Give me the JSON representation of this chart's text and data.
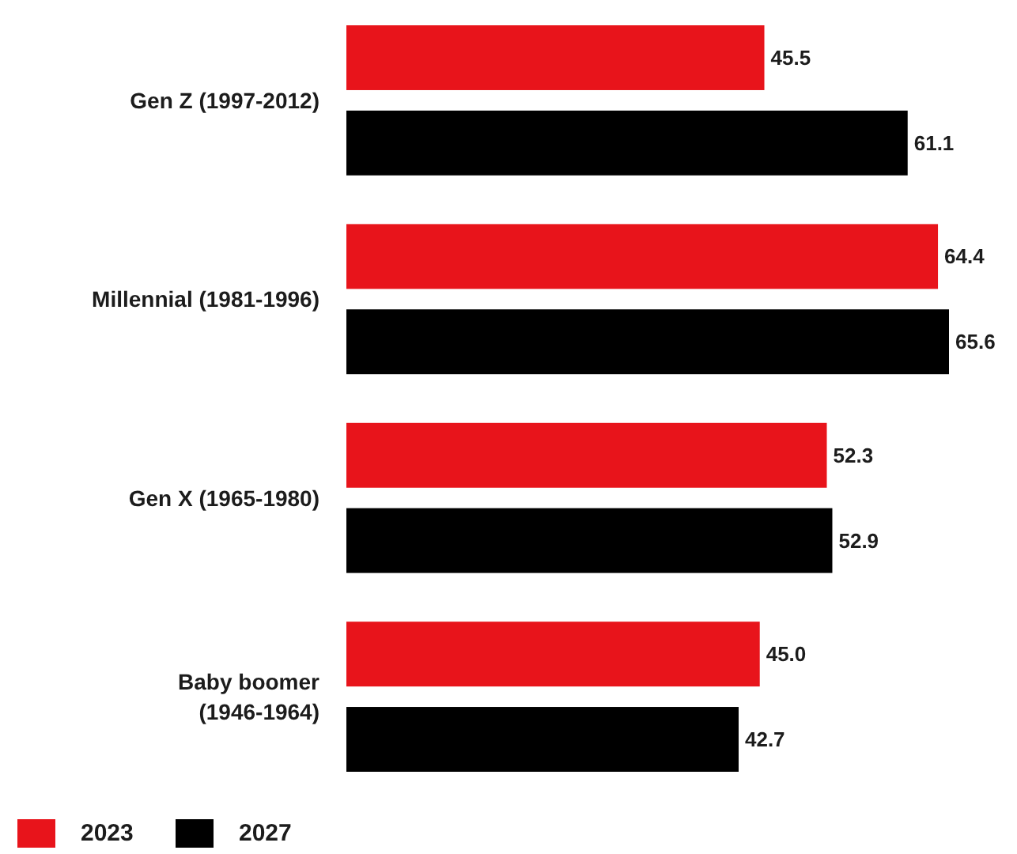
{
  "chart_data": {
    "type": "bar",
    "orientation": "horizontal",
    "categories": [
      "Gen Z (1997-2012)",
      "Millennial (1981-1996)",
      "Gen X (1965-1980)",
      "Baby boomer\n(1946-1964)"
    ],
    "series": [
      {
        "name": "2023",
        "color": "#e8141b",
        "values": [
          45.5,
          64.4,
          52.3,
          45.0
        ],
        "value_labels": [
          "45.5",
          "64.4",
          "52.3",
          "45.0"
        ]
      },
      {
        "name": "2027",
        "color": "#000000",
        "values": [
          61.1,
          65.6,
          52.9,
          42.7
        ],
        "value_labels": [
          "61.1",
          "65.6",
          "52.9",
          "42.7"
        ]
      }
    ],
    "legend": "bottom left"
  }
}
